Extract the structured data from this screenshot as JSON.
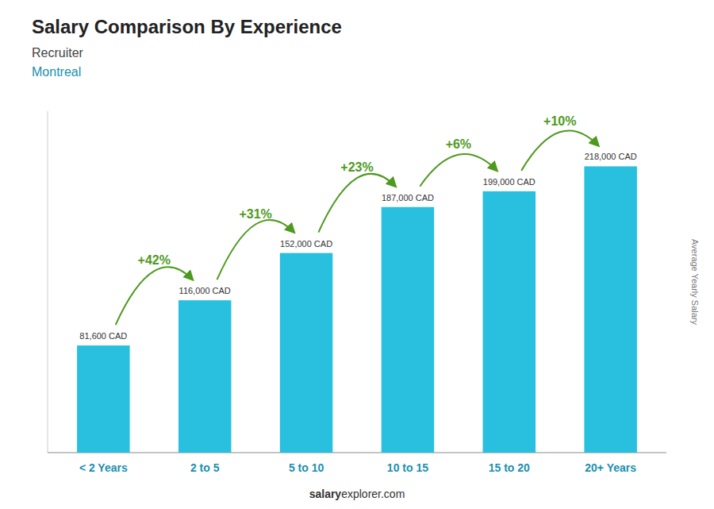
{
  "chart_data": {
    "type": "bar",
    "title": "Salary Comparison By Experience",
    "subtitle": [
      "Recruiter",
      "Montreal"
    ],
    "categories": [
      "< 2 Years",
      "2 to 5",
      "5 to 10",
      "10 to 15",
      "15 to 20",
      "20+ Years"
    ],
    "values": [
      81600,
      116000,
      152000,
      187000,
      199000,
      218000
    ],
    "value_labels": [
      "81,600 CAD",
      "116,000 CAD",
      "152,000 CAD",
      "187,000 CAD",
      "199,000 CAD",
      "218,000 CAD"
    ],
    "data_labels": true,
    "annotations": [
      "+42%",
      "+31%",
      "+23%",
      "+6%",
      "+10%"
    ],
    "y_label": "Average Yearly Salary",
    "footer": [
      "salary",
      "explorer.com"
    ],
    "color": "#29c0e0",
    "ylim": [
      0,
      260000
    ],
    "tick_labels": "x",
    "grid": false
  }
}
